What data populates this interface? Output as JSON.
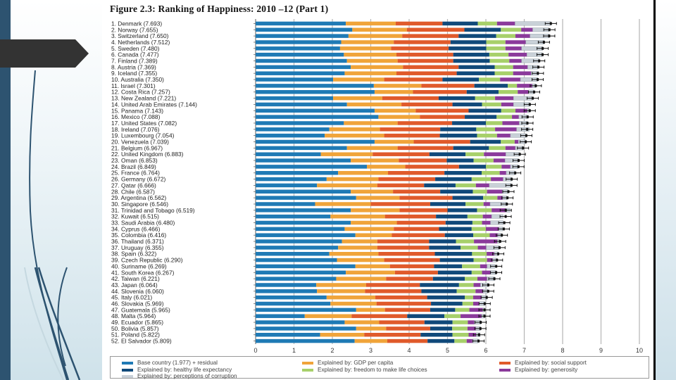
{
  "slide": {
    "decor": {
      "left_band_color": "#2d5370",
      "arrow_color": "#333333"
    }
  },
  "chart_data": {
    "type": "bar",
    "orientation": "horizontal-stacked",
    "title": "Figure 2.3: Ranking of Happiness: 2010 –12 (Part 1)",
    "xlabel": "",
    "ylabel": "",
    "xlim": [
      0,
      10
    ],
    "xticks": [
      "0",
      "1",
      "2",
      "3",
      "4",
      "5",
      "6",
      "7",
      "8",
      "9",
      "10"
    ],
    "grid": true,
    "legend_position": "bottom",
    "series": [
      {
        "key": "base",
        "name": "Base country (1.977) + residual",
        "color": "#1f7ab5"
      },
      {
        "key": "gdp",
        "name": "Explained by: GDP per capita",
        "color": "#f0a43a"
      },
      {
        "key": "social",
        "name": "Explained by: social support",
        "color": "#e05a2b"
      },
      {
        "key": "health",
        "name": "Explained by: healthy life expectancy",
        "color": "#10497a"
      },
      {
        "key": "freedom",
        "name": "Explained by: freedom to make life choices",
        "color": "#a7d06a"
      },
      {
        "key": "generosity",
        "name": "Explained by: generosity",
        "color": "#8b3a9b"
      },
      {
        "key": "corruption",
        "name": "Explained by: perceptions of corruption",
        "color": "#c9d1d8"
      }
    ],
    "countries": [
      {
        "rank": 1,
        "label": "1. Denmark (7.693)",
        "score": 7.693,
        "values": [
          2.35,
          1.3,
          1.22,
          0.92,
          0.5,
          0.47,
          0.93
        ]
      },
      {
        "rank": 2,
        "label": "2. Norway (7.655)",
        "score": 7.655,
        "values": [
          2.52,
          1.42,
          1.5,
          0.95,
          0.53,
          0.3,
          0.43
        ]
      },
      {
        "rank": 3,
        "label": "3. Switzerland (7.650)",
        "score": 7.65,
        "values": [
          2.42,
          1.4,
          1.47,
          0.98,
          0.5,
          0.38,
          0.5
        ]
      },
      {
        "rank": 4,
        "label": "4. Netherlands (7.512)",
        "score": 7.512,
        "values": [
          2.23,
          1.37,
          1.48,
          0.93,
          0.5,
          0.53,
          0.48
        ]
      },
      {
        "rank": 5,
        "label": "5. Sweden (7.480)",
        "score": 7.48,
        "values": [
          2.2,
          1.33,
          1.5,
          0.98,
          0.5,
          0.42,
          0.55
        ]
      },
      {
        "rank": 6,
        "label": "6. Canada (7.477)",
        "score": 7.477,
        "values": [
          2.3,
          1.37,
          1.48,
          0.94,
          0.5,
          0.48,
          0.4
        ]
      },
      {
        "rank": 7,
        "label": "7. Finland (7.389)",
        "score": 7.389,
        "values": [
          2.38,
          1.32,
          1.45,
          0.95,
          0.51,
          0.32,
          0.46
        ]
      },
      {
        "rank": 8,
        "label": "8. Austria (7.369)",
        "score": 7.369,
        "values": [
          2.48,
          1.36,
          1.45,
          0.94,
          0.48,
          0.38,
          0.26
        ]
      },
      {
        "rank": 9,
        "label": "9. Iceland (7.355)",
        "score": 7.355,
        "values": [
          2.32,
          1.35,
          1.57,
          0.99,
          0.48,
          0.47,
          0.19
        ]
      },
      {
        "rank": 10,
        "label": "10. Australia (7.350)",
        "score": 7.35,
        "values": [
          2.02,
          1.33,
          1.52,
          0.95,
          0.55,
          0.53,
          0.45
        ]
      },
      {
        "rank": 11,
        "label": "11. Israel (7.301)",
        "score": 7.301,
        "values": [
          3.08,
          1.24,
          1.38,
          0.87,
          0.24,
          0.4,
          0.09
        ]
      },
      {
        "rank": 12,
        "label": "12. Costa Rica (7.257)",
        "score": 7.257,
        "values": [
          3.1,
          1.0,
          1.4,
          0.83,
          0.5,
          0.28,
          0.14
        ]
      },
      {
        "rank": 13,
        "label": "13. New Zealand (7.221)",
        "score": 7.221,
        "values": [
          2.02,
          1.28,
          1.47,
          0.95,
          0.52,
          0.48,
          0.49
        ]
      },
      {
        "rank": 14,
        "label": "14. United Arab Emirates (7.144)",
        "score": 7.144,
        "values": [
          2.38,
          1.42,
          1.33,
          0.77,
          0.5,
          0.32,
          0.42
        ]
      },
      {
        "rank": 15,
        "label": "15. Panama (7.143)",
        "score": 7.143,
        "values": [
          3.1,
          1.07,
          1.38,
          0.85,
          0.37,
          0.31,
          0.05
        ]
      },
      {
        "rank": 16,
        "label": "16. Mexico (7.088)",
        "score": 7.088,
        "values": [
          3.2,
          1.08,
          1.17,
          0.83,
          0.4,
          0.18,
          0.22
        ]
      },
      {
        "rank": 17,
        "label": "17. United States (7.082)",
        "score": 7.082,
        "values": [
          2.3,
          1.4,
          1.42,
          0.88,
          0.43,
          0.44,
          0.21
        ]
      },
      {
        "rank": 18,
        "label": "18. Ireland (7.076)",
        "score": 7.076,
        "values": [
          1.92,
          1.32,
          1.57,
          0.94,
          0.49,
          0.56,
          0.33
        ]
      },
      {
        "rank": 19,
        "label": "19. Luxembourg (7.054)",
        "score": 7.054,
        "values": [
          1.8,
          1.55,
          1.45,
          0.97,
          0.52,
          0.35,
          0.41
        ]
      },
      {
        "rank": 20,
        "label": "20. Venezuela (7.039)",
        "score": 7.039,
        "values": [
          3.1,
          1.02,
          1.47,
          0.8,
          0.36,
          0.1,
          0.19
        ]
      },
      {
        "rank": 21,
        "label": "21. Belgium (6.967)",
        "score": 6.967,
        "values": [
          2.38,
          1.32,
          1.45,
          0.93,
          0.43,
          0.26,
          0.2
        ]
      },
      {
        "rank": 22,
        "label": "22. United Kingdom (6.883)",
        "score": 6.883,
        "values": [
          1.7,
          1.35,
          1.48,
          0.94,
          0.48,
          0.57,
          0.36
        ]
      },
      {
        "rank": 23,
        "label": "23. Oman (6.853)",
        "score": 6.853,
        "values": [
          2.48,
          1.25,
          1.25,
          0.7,
          0.52,
          0.3,
          0.35
        ]
      },
      {
        "rank": 24,
        "label": "24. Brazil (6.849)",
        "score": 6.849,
        "values": [
          2.9,
          1.0,
          1.4,
          0.7,
          0.41,
          0.23,
          0.2
        ]
      },
      {
        "rank": 25,
        "label": "25. France (6.764)",
        "score": 6.764,
        "values": [
          2.15,
          1.3,
          1.47,
          0.97,
          0.47,
          0.17,
          0.23
        ]
      },
      {
        "rank": 26,
        "label": "26. Germany (6.672)",
        "score": 6.672,
        "values": [
          1.85,
          1.35,
          1.48,
          0.95,
          0.5,
          0.32,
          0.22
        ]
      },
      {
        "rank": 27,
        "label": "27. Qatar (6.666)",
        "score": 6.666,
        "values": [
          1.6,
          1.57,
          1.22,
          0.82,
          0.53,
          0.35,
          0.57
        ]
      },
      {
        "rank": 28,
        "label": "28. Chile (6.587)",
        "score": 6.587,
        "values": [
          2.48,
          1.1,
          1.23,
          0.85,
          0.37,
          0.4,
          0.15
        ]
      },
      {
        "rank": 29,
        "label": "29. Argentina (6.562)",
        "score": 6.562,
        "values": [
          2.62,
          1.13,
          1.38,
          0.8,
          0.37,
          0.14,
          0.11
        ]
      },
      {
        "rank": 30,
        "label": "30. Singapore (6.546)",
        "score": 6.546,
        "values": [
          1.55,
          1.45,
          1.55,
          0.92,
          0.47,
          0.17,
          0.43
        ]
      },
      {
        "rank": 31,
        "label": "31. Trinidad and Tobago (6.519)",
        "score": 6.519,
        "values": [
          2.48,
          1.27,
          1.25,
          0.77,
          0.38,
          0.38,
          0.1
        ]
      },
      {
        "rank": 32,
        "label": "32. Kuwait (6.515)",
        "score": 6.515,
        "values": [
          1.95,
          1.42,
          1.33,
          0.82,
          0.4,
          0.23,
          0.3
        ]
      },
      {
        "rank": 33,
        "label": "33. Saudi Arabia (6.480)",
        "score": 6.48,
        "values": [
          2.48,
          1.2,
          1.27,
          0.7,
          0.25,
          0.22,
          0.33
        ]
      },
      {
        "rank": 34,
        "label": "34. Cyprus (6.466)",
        "score": 6.466,
        "values": [
          2.32,
          1.28,
          1.18,
          0.85,
          0.37,
          0.34,
          0.1
        ]
      },
      {
        "rank": 35,
        "label": "35. Colombia (6.416)",
        "score": 6.416,
        "values": [
          2.6,
          0.95,
          1.38,
          0.74,
          0.43,
          0.21,
          0.1
        ]
      },
      {
        "rank": 36,
        "label": "36. Thailand (6.371)",
        "score": 6.371,
        "values": [
          2.25,
          0.92,
          1.35,
          0.7,
          0.47,
          0.61,
          0.06
        ]
      },
      {
        "rank": 37,
        "label": "37. Uruguay (6.355)",
        "score": 6.355,
        "values": [
          2.15,
          1.02,
          1.35,
          0.82,
          0.45,
          0.22,
          0.34
        ]
      },
      {
        "rank": 38,
        "label": "38. Spain (6.322)",
        "score": 6.322,
        "values": [
          1.92,
          1.28,
          1.47,
          0.97,
          0.38,
          0.2,
          0.1
        ]
      },
      {
        "rank": 39,
        "label": "39. Czech Republic (6.290)",
        "score": 6.29,
        "values": [
          2.12,
          1.23,
          1.45,
          0.88,
          0.35,
          0.15,
          0.1
        ]
      },
      {
        "rank": 40,
        "label": "40. Suriname (6.269)",
        "score": 6.269,
        "values": [
          2.6,
          0.9,
          1.15,
          0.73,
          0.47,
          0.18,
          0.2
        ]
      },
      {
        "rank": 41,
        "label": "41. South Korea (6.267)",
        "score": 6.267,
        "values": [
          2.35,
          1.28,
          1.12,
          0.88,
          0.27,
          0.22,
          0.15
        ]
      },
      {
        "rank": 42,
        "label": "42. Taiwan (6.221)",
        "score": 6.221,
        "values": [
          2.1,
          1.3,
          1.22,
          0.83,
          0.33,
          0.25,
          0.2
        ]
      },
      {
        "rank": 43,
        "label": "43. Japan (6.064)",
        "score": 6.064,
        "values": [
          1.58,
          1.3,
          1.4,
          1.02,
          0.38,
          0.18,
          0.2
        ]
      },
      {
        "rank": 44,
        "label": "44. Slovenia (6.060)",
        "score": 6.06,
        "values": [
          1.6,
          1.25,
          1.47,
          0.92,
          0.49,
          0.2,
          0.12
        ]
      },
      {
        "rank": 45,
        "label": "45. Italy (6.021)",
        "score": 6.021,
        "values": [
          1.85,
          1.27,
          1.35,
          0.98,
          0.22,
          0.22,
          0.14
        ]
      },
      {
        "rank": 46,
        "label": "46. Slovakia (5.969)",
        "score": 5.969,
        "values": [
          1.95,
          1.2,
          1.42,
          0.82,
          0.28,
          0.16,
          0.14
        ]
      },
      {
        "rank": 47,
        "label": "47. Guatemala (5.965)",
        "score": 5.965,
        "values": [
          2.62,
          0.75,
          1.18,
          0.65,
          0.37,
          0.35,
          0.05
        ]
      },
      {
        "rank": 48,
        "label": "48. Malta (5.964)",
        "score": 5.964,
        "values": [
          1.28,
          1.22,
          1.45,
          0.97,
          0.42,
          0.55,
          0.08
        ]
      },
      {
        "rank": 49,
        "label": "49. Ecuador (5.865)",
        "score": 5.865,
        "values": [
          2.32,
          0.9,
          1.18,
          0.73,
          0.4,
          0.17,
          0.17
        ]
      },
      {
        "rank": 50,
        "label": "50. Bolivia (5.857)",
        "score": 5.857,
        "values": [
          2.62,
          0.78,
          1.15,
          0.57,
          0.4,
          0.22,
          0.12
        ]
      },
      {
        "rank": 51,
        "label": "51. Poland (5.822)",
        "score": 5.822,
        "values": [
          1.68,
          1.15,
          1.47,
          0.83,
          0.42,
          0.2,
          0.1
        ]
      },
      {
        "rank": 52,
        "label": "52. El Salvador (5.809)",
        "score": 5.809,
        "values": [
          2.58,
          0.85,
          1.05,
          0.7,
          0.32,
          0.15,
          0.15
        ]
      }
    ]
  }
}
